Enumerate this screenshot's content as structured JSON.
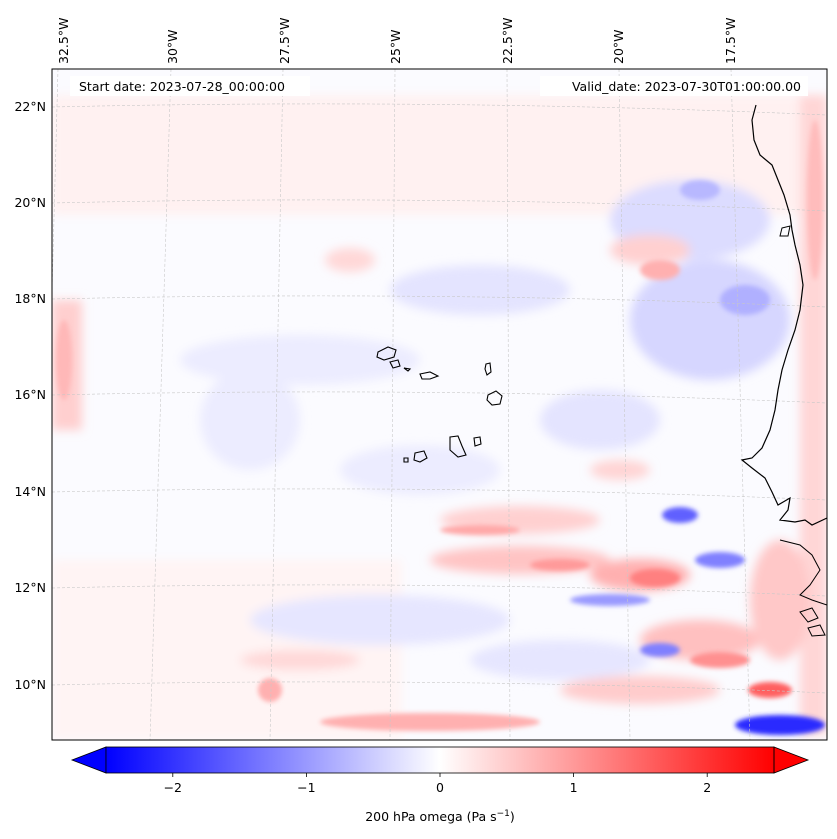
{
  "map": {
    "start_date": "Start date: 2023-07-28_00:00:00",
    "valid_date": "Valid_date: 2023-07-30T01:00:00.00",
    "lon_labels": [
      "32.5°W",
      "30°W",
      "27.5°W",
      "25°W",
      "22.5°W",
      "20°W",
      "17.5°W"
    ],
    "lat_labels": [
      "22°N",
      "20°N",
      "18°N",
      "16°N",
      "14°N",
      "12°N",
      "10°N"
    ]
  },
  "colorbar": {
    "label": "200 hPa omega (Pa s",
    "label_sup": "−1",
    "label_end": ")",
    "ticks": [
      "−2",
      "−1",
      "0",
      "1",
      "2"
    ],
    "tick_values": [
      -2,
      -1,
      0,
      1,
      2
    ],
    "min": -2.5,
    "max": 2.5,
    "extend": "both",
    "colormap": "bwr",
    "color_low": "#0000ff",
    "color_mid": "#ffffff",
    "color_high": "#ff0000"
  }
}
